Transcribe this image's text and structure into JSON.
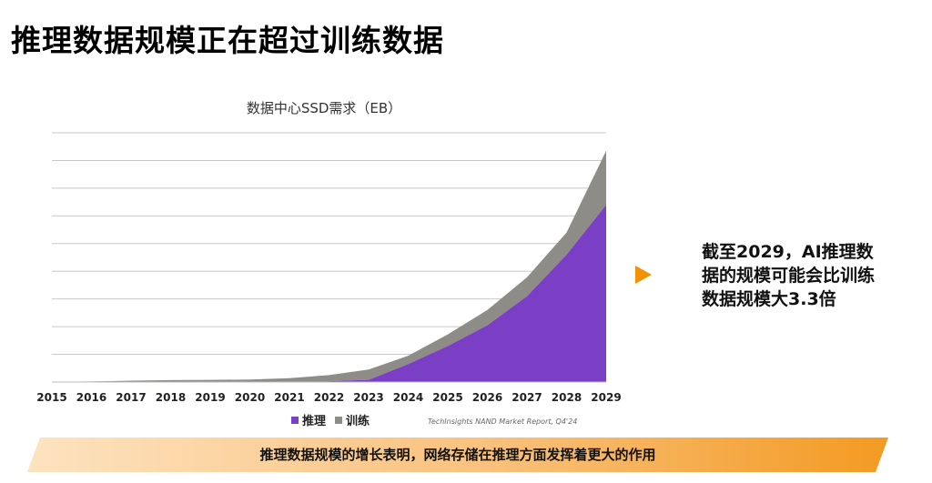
{
  "slide": {
    "title": "推理数据规模正在超过训练数据",
    "note": "截至2029，AI推理数据的规模可能会比训练数据规模大3.3倍",
    "banner": "推理数据规模的增长表明，网络存储在推理方面发挥着更大的作用",
    "source": "TechInsights NAND Market Report, Q4'24"
  },
  "colors": {
    "inference": "#7b3fc6",
    "training": "#8e8c86",
    "accent": "#f39200"
  },
  "chart_data": {
    "type": "area",
    "stacked": true,
    "title": "数据中心SSD需求（EB）",
    "x": [
      "2015",
      "2016",
      "2017",
      "2018",
      "2019",
      "2020",
      "2021",
      "2022",
      "2023",
      "2024",
      "2025",
      "2026",
      "2027",
      "2028",
      "2029"
    ],
    "ylim": [
      0,
      9
    ],
    "grid": true,
    "y_ticks_shown": false,
    "legend_position": "bottom",
    "series": [
      {
        "name": "推理",
        "values": [
          0,
          0,
          0,
          0,
          0.01,
          0.01,
          0.02,
          0.03,
          0.08,
          0.65,
          1.3,
          2.05,
          3.1,
          4.6,
          6.4
        ]
      },
      {
        "name": "训练",
        "values": [
          0.01,
          0.02,
          0.05,
          0.07,
          0.07,
          0.08,
          0.12,
          0.22,
          0.37,
          0.3,
          0.42,
          0.55,
          0.68,
          0.8,
          1.95
        ]
      }
    ]
  }
}
